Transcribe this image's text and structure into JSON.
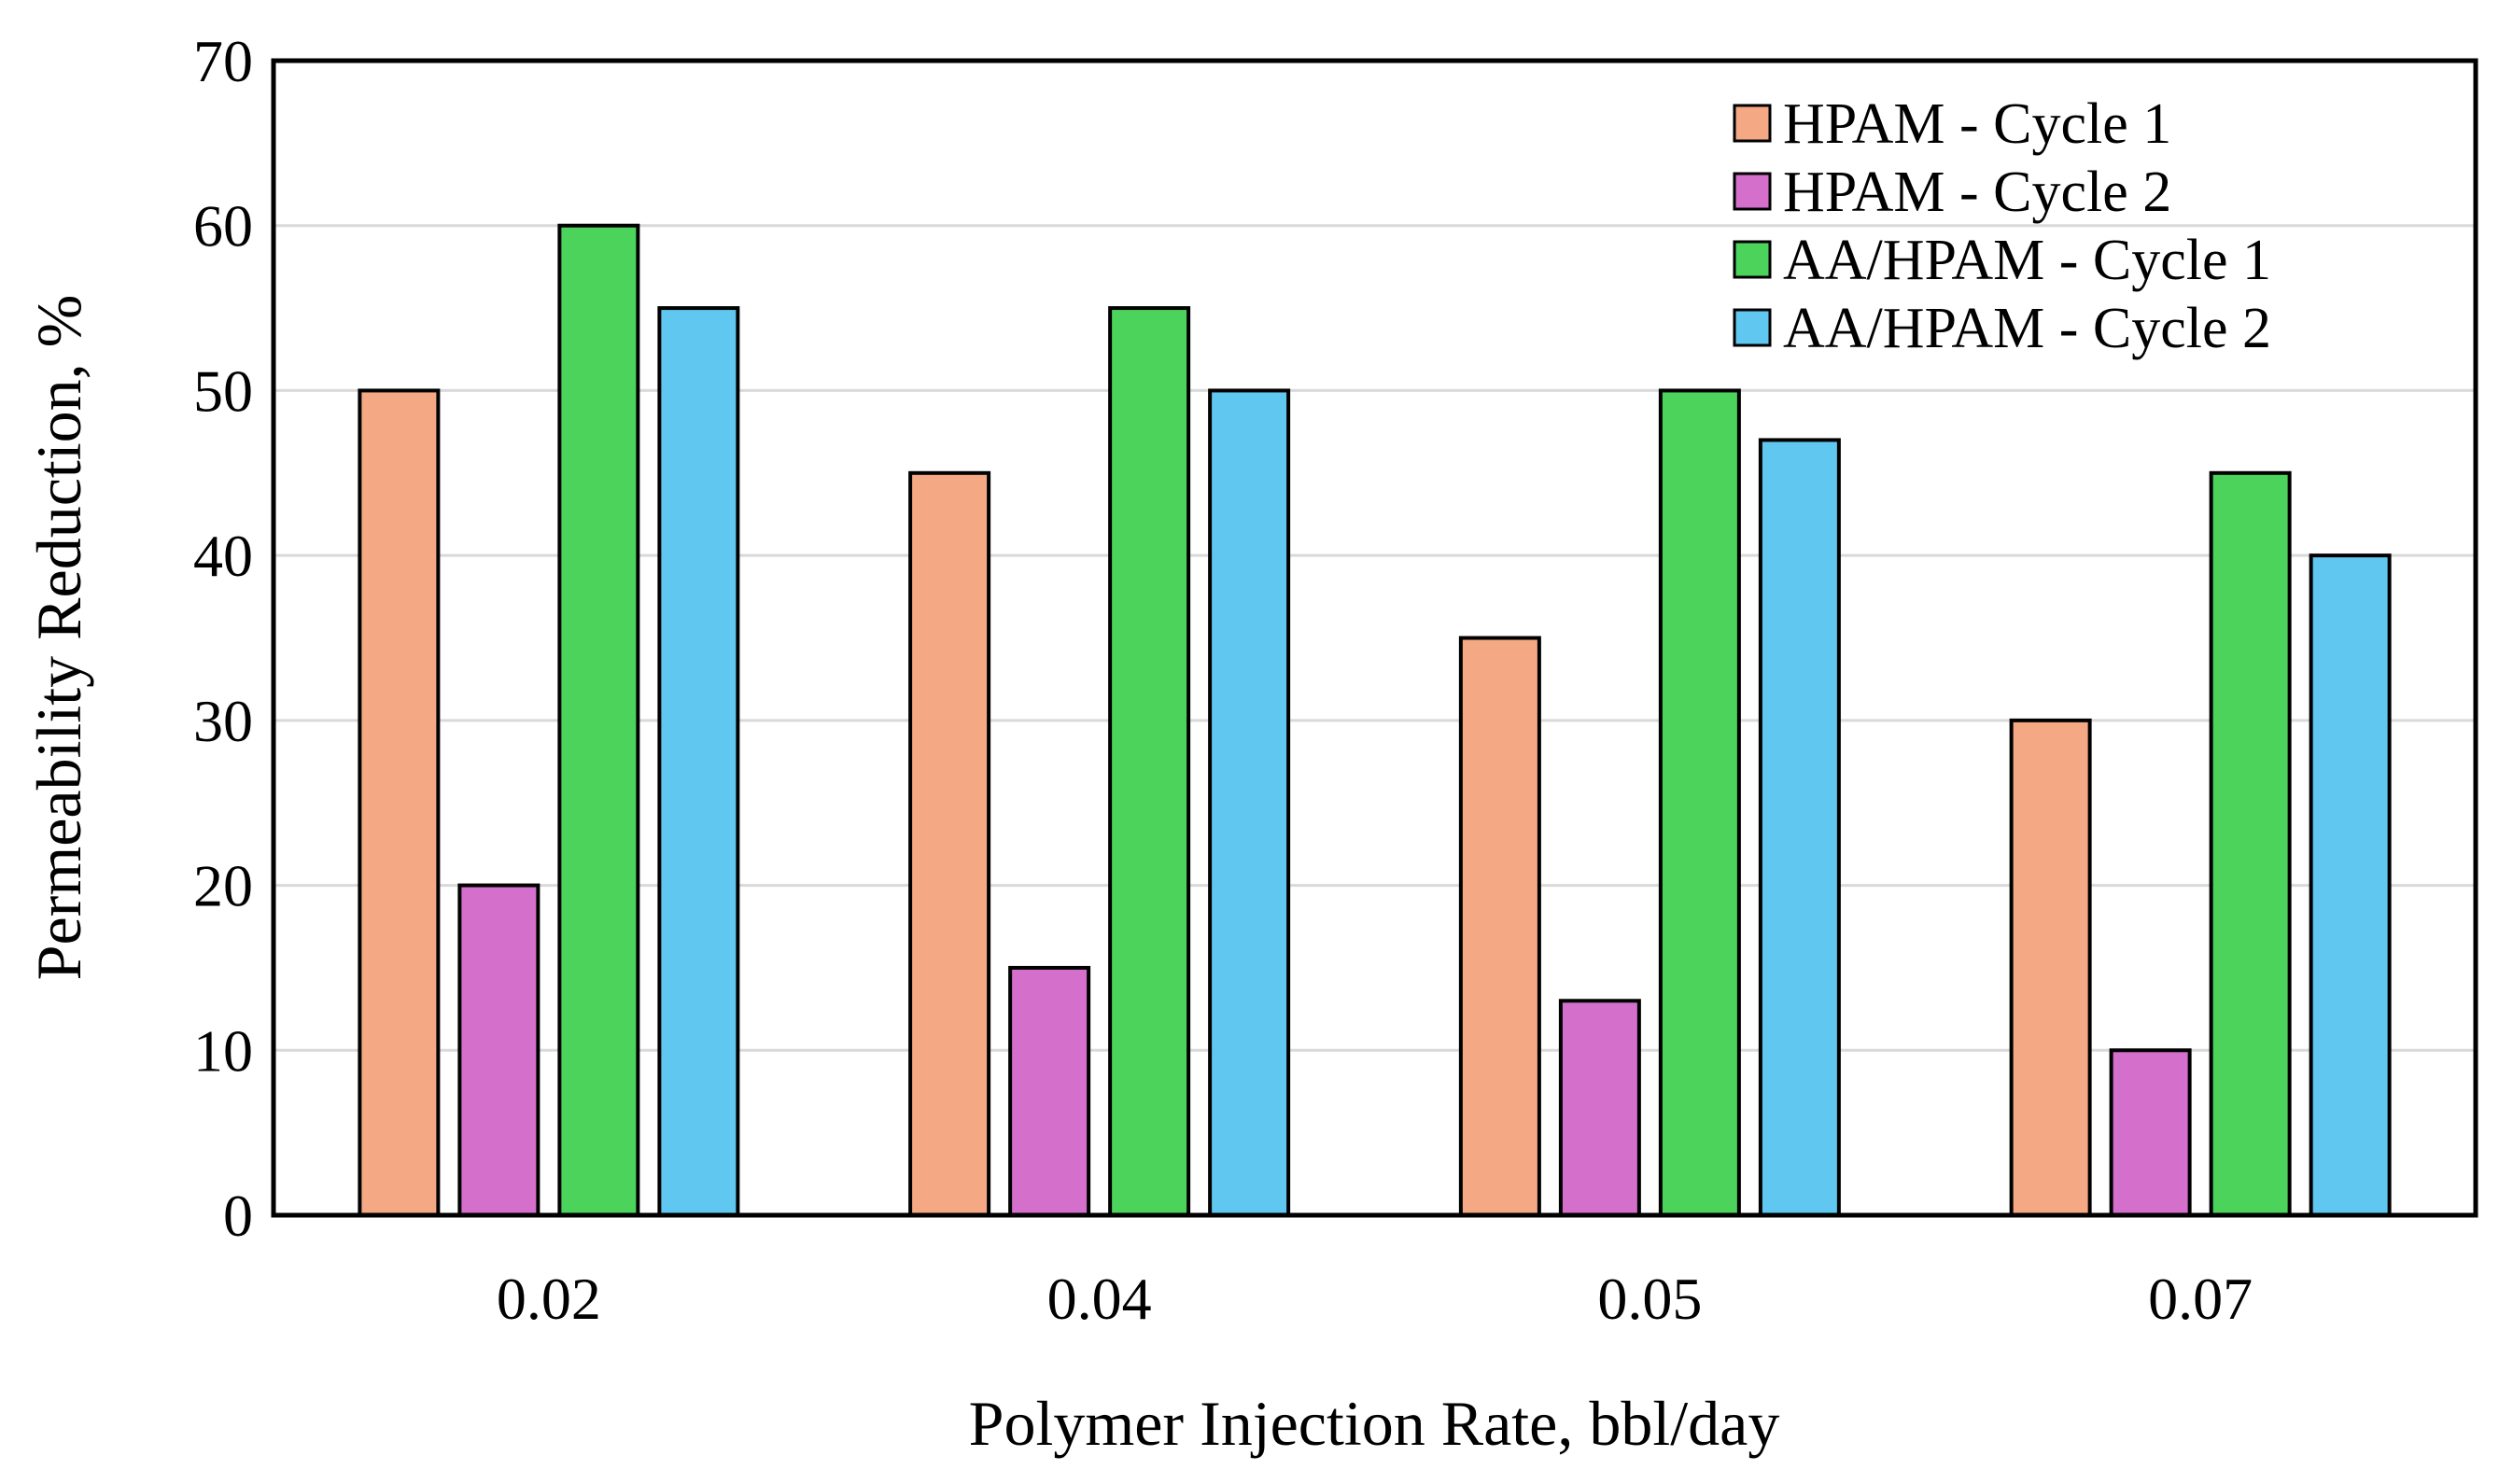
{
  "chart_data": {
    "type": "bar",
    "title": "",
    "xlabel": "Polymer Injection Rate, bbl/day",
    "ylabel": "Permeability Reduction, %",
    "categories": [
      "0.02",
      "0.04",
      "0.05",
      "0.07"
    ],
    "ylim": [
      0,
      70
    ],
    "yticks": [
      0,
      10,
      20,
      30,
      40,
      50,
      60,
      70
    ],
    "grid": true,
    "legend_position": "top-right",
    "series": [
      {
        "name": "HPAM - Cycle 1",
        "color": "#F4A984",
        "values": [
          50,
          45,
          35,
          30
        ]
      },
      {
        "name": "HPAM - Cycle 2",
        "color": "#D46FCB",
        "values": [
          20,
          15,
          13,
          10
        ]
      },
      {
        "name": "AA/HPAM - Cycle 1",
        "color": "#4CD35C",
        "values": [
          60,
          55,
          50,
          45
        ]
      },
      {
        "name": "AA/HPAM - Cycle 2",
        "color": "#60C8F0",
        "values": [
          55,
          50,
          47,
          40
        ]
      }
    ]
  }
}
